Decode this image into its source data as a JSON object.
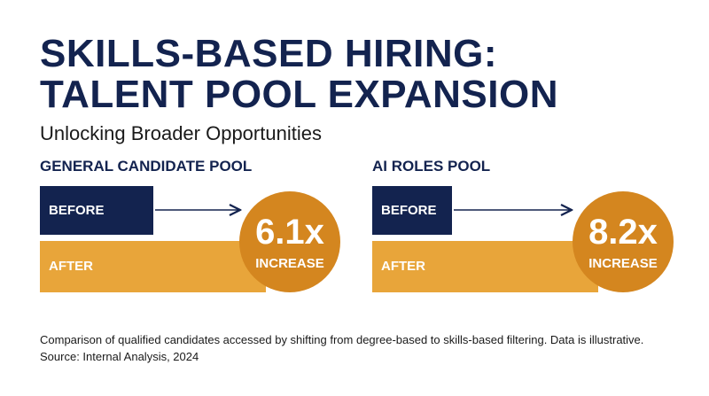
{
  "header": {
    "title_lines": [
      "SKILLS-BASED HIRING:",
      "TALENT POOL EXPANSION"
    ],
    "subtitle": "Unlocking Broader Opportunities"
  },
  "panels": [
    {
      "title": "GENERAL CANDIDATE POOL",
      "before_label": "BEFORE",
      "after_label": "AFTER",
      "multiplier": "6.1x",
      "multiplier_caption": "INCREASE"
    },
    {
      "title": "AI ROLES POOL",
      "before_label": "BEFORE",
      "after_label": "AFTER",
      "multiplier": "8.2x",
      "multiplier_caption": "INCREASE"
    }
  ],
  "footer": {
    "note": "Comparison of qualified candidates accessed by shifting from degree-based to skills-based filtering. Data is illustrative.",
    "source": "Source: Internal Analysis, 2024"
  }
}
